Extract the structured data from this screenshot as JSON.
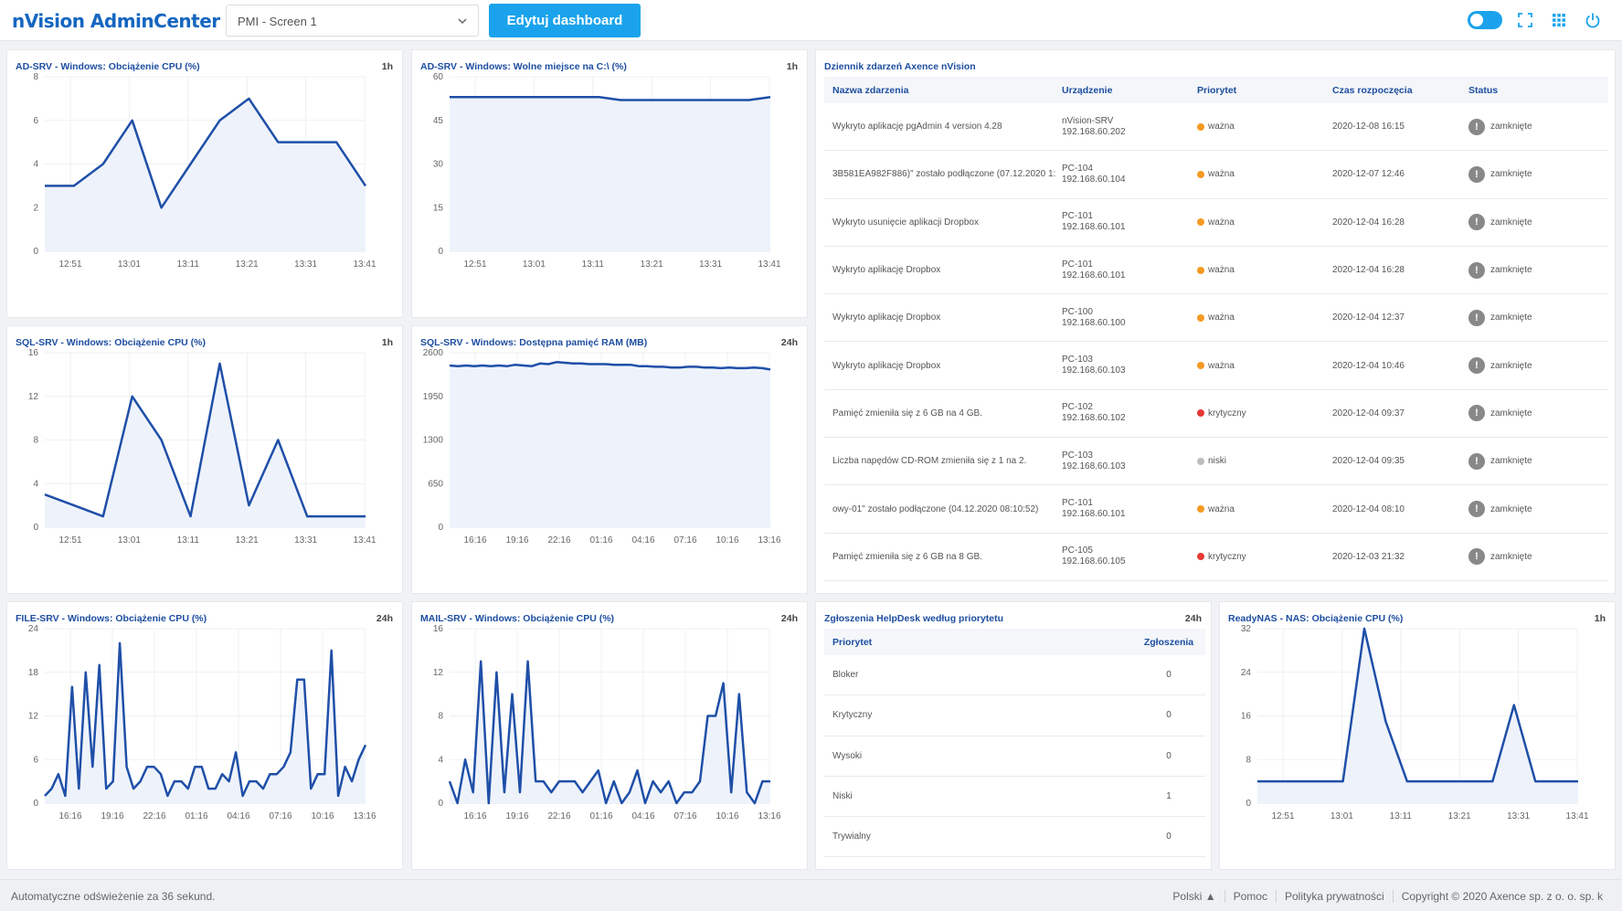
{
  "header": {
    "logo": "nVision AdminCenter",
    "screen_select": "PMI - Screen 1",
    "edit_button": "Edytuj dashboard",
    "icons": [
      "theme-toggle-icon",
      "fullscreen-icon",
      "apps-grid-icon",
      "power-icon"
    ]
  },
  "colors": {
    "accent": "#1aa3ec",
    "line": "#1f4fa8",
    "title": "#1d4ea0",
    "warning": "#f59a23",
    "critical": "#e53935",
    "low": "#bdbdbd"
  },
  "panels": {
    "p1": {
      "title": "AD-SRV - Windows: Obciążenie CPU (%)",
      "badge": "1h"
    },
    "p2": {
      "title": "AD-SRV - Windows: Wolne miejsce na C:\\ (%)",
      "badge": "1h"
    },
    "p3": {
      "title": "SQL-SRV - Windows: Obciążenie CPU (%)",
      "badge": "1h"
    },
    "p4": {
      "title": "SQL-SRV - Windows: Dostępna pamięć RAM (MB)",
      "badge": "24h"
    },
    "p5": {
      "title": "FILE-SRV - Windows: Obciążenie CPU (%)",
      "badge": "24h"
    },
    "p6": {
      "title": "MAIL-SRV - Windows: Obciążenie CPU (%)",
      "badge": "24h"
    },
    "events": {
      "title": "Dziennik zdarzeń Axence nVision"
    },
    "helpdesk": {
      "title": "Zgłoszenia HelpDesk według priorytetu",
      "badge": "24h"
    },
    "p8": {
      "title": "ReadyNAS - NAS: Obciążenie CPU (%)",
      "badge": "1h"
    }
  },
  "chart_data": [
    {
      "id": "p1",
      "type": "area",
      "x_ticks": [
        "12:51",
        "13:01",
        "13:11",
        "13:21",
        "13:31",
        "13:41"
      ],
      "y_ticks": [
        0,
        2,
        4,
        6,
        8
      ],
      "ylim": [
        0,
        8
      ],
      "values": [
        3,
        3,
        4,
        6,
        2,
        4,
        6,
        7,
        5,
        5,
        5,
        3
      ]
    },
    {
      "id": "p2",
      "type": "area",
      "x_ticks": [
        "12:51",
        "13:01",
        "13:11",
        "13:21",
        "13:31",
        "13:41"
      ],
      "y_ticks": [
        0,
        15,
        30,
        45,
        60
      ],
      "ylim": [
        0,
        60
      ],
      "values": [
        53,
        53,
        53,
        53,
        53,
        53,
        53,
        53,
        52,
        52,
        52,
        52,
        52,
        52,
        52,
        53
      ]
    },
    {
      "id": "p3",
      "type": "area",
      "x_ticks": [
        "12:51",
        "13:01",
        "13:11",
        "13:21",
        "13:31",
        "13:41"
      ],
      "y_ticks": [
        0,
        4,
        8,
        12,
        16
      ],
      "ylim": [
        0,
        16
      ],
      "values": [
        3,
        2,
        1,
        12,
        8,
        1,
        15,
        2,
        8,
        1,
        1,
        1
      ]
    },
    {
      "id": "p4",
      "type": "area",
      "x_ticks": [
        "16:16",
        "19:16",
        "22:16",
        "01:16",
        "04:16",
        "07:16",
        "10:16",
        "13:16"
      ],
      "y_ticks": [
        0,
        650,
        1300,
        1950,
        2600
      ],
      "ylim": [
        0,
        2600
      ],
      "values": [
        2410,
        2400,
        2410,
        2400,
        2410,
        2400,
        2410,
        2400,
        2420,
        2410,
        2400,
        2440,
        2430,
        2460,
        2450,
        2440,
        2440,
        2430,
        2430,
        2430,
        2420,
        2420,
        2420,
        2400,
        2400,
        2390,
        2390,
        2380,
        2380,
        2390,
        2390,
        2380,
        2380,
        2370,
        2380,
        2370,
        2370,
        2380,
        2370,
        2350
      ]
    },
    {
      "id": "p5",
      "type": "area",
      "x_ticks": [
        "16:16",
        "19:16",
        "22:16",
        "01:16",
        "04:16",
        "07:16",
        "10:16",
        "13:16"
      ],
      "y_ticks": [
        0,
        6,
        12,
        18,
        24
      ],
      "ylim": [
        0,
        24
      ],
      "values": [
        1,
        2,
        4,
        1,
        16,
        2,
        18,
        5,
        19,
        2,
        3,
        22,
        5,
        2,
        3,
        5,
        5,
        4,
        1,
        3,
        3,
        2,
        5,
        5,
        2,
        2,
        4,
        3,
        7,
        1,
        3,
        3,
        2,
        4,
        4,
        5,
        7,
        17,
        17,
        2,
        4,
        4,
        21,
        1,
        5,
        3,
        6,
        8
      ]
    },
    {
      "id": "p6",
      "type": "area",
      "x_ticks": [
        "16:16",
        "19:16",
        "22:16",
        "01:16",
        "04:16",
        "07:16",
        "10:16",
        "13:16"
      ],
      "y_ticks": [
        0,
        4,
        8,
        12,
        16
      ],
      "ylim": [
        0,
        16
      ],
      "values": [
        2,
        0,
        4,
        1,
        13,
        0,
        12,
        1,
        10,
        1,
        13,
        2,
        2,
        1,
        2,
        2,
        2,
        1,
        2,
        3,
        0,
        2,
        0,
        1,
        3,
        0,
        2,
        1,
        2,
        0,
        1,
        1,
        2,
        8,
        8,
        11,
        1,
        10,
        1,
        0,
        2,
        2
      ]
    },
    {
      "id": "p8",
      "type": "area",
      "x_ticks": [
        "12:51",
        "13:01",
        "13:11",
        "13:21",
        "13:31",
        "13:41"
      ],
      "y_ticks": [
        0,
        8,
        16,
        24,
        32
      ],
      "ylim": [
        0,
        32
      ],
      "values": [
        4,
        4,
        4,
        4,
        4,
        32,
        15,
        4,
        4,
        4,
        4,
        4,
        18,
        4,
        4,
        4
      ]
    }
  ],
  "events": {
    "headers": [
      "Nazwa zdarzenia",
      "Urządzenie",
      "Priorytet",
      "Czas rozpoczęcia",
      "Status"
    ],
    "rows": [
      {
        "name": "Wykryto aplikację pgAdmin 4 version 4.28",
        "dev": "nVision-SRV",
        "ip": "192.168.60.202",
        "prio": "ważna",
        "prio_color": "#f59a23",
        "time": "2020-12-08 16:15",
        "status": "zamknięte"
      },
      {
        "name": "3B581EA982F886)\" zostało podłączone (07.12.2020 1:",
        "dev": "PC-104",
        "ip": "192.168.60.104",
        "prio": "ważna",
        "prio_color": "#f59a23",
        "time": "2020-12-07 12:46",
        "status": "zamknięte"
      },
      {
        "name": "Wykryto usunięcie aplikacji Dropbox",
        "dev": "PC-101",
        "ip": "192.168.60.101",
        "prio": "ważna",
        "prio_color": "#f59a23",
        "time": "2020-12-04 16:28",
        "status": "zamknięte"
      },
      {
        "name": "Wykryto aplikację Dropbox",
        "dev": "PC-101",
        "ip": "192.168.60.101",
        "prio": "ważna",
        "prio_color": "#f59a23",
        "time": "2020-12-04 16:28",
        "status": "zamknięte"
      },
      {
        "name": "Wykryto aplikację Dropbox",
        "dev": "PC-100",
        "ip": "192.168.60.100",
        "prio": "ważna",
        "prio_color": "#f59a23",
        "time": "2020-12-04 12:37",
        "status": "zamknięte"
      },
      {
        "name": "Wykryto aplikację Dropbox",
        "dev": "PC-103",
        "ip": "192.168.60.103",
        "prio": "ważna",
        "prio_color": "#f59a23",
        "time": "2020-12-04 10:46",
        "status": "zamknięte"
      },
      {
        "name": "Pamięć zmieniła się z 6 GB na 4 GB.",
        "dev": "PC-102",
        "ip": "192.168.60.102",
        "prio": "krytyczny",
        "prio_color": "#e53935",
        "time": "2020-12-04 09:37",
        "status": "zamknięte"
      },
      {
        "name": "Liczba napędów CD-ROM zmieniła się z 1 na 2.",
        "dev": "PC-103",
        "ip": "192.168.60.103",
        "prio": "niski",
        "prio_color": "#bdbdbd",
        "time": "2020-12-04 09:35",
        "status": "zamknięte"
      },
      {
        "name": "owy-01\" zostało podłączone (04.12.2020 08:10:52)",
        "dev": "PC-101",
        "ip": "192.168.60.101",
        "prio": "ważna",
        "prio_color": "#f59a23",
        "time": "2020-12-04 08:10",
        "status": "zamknięte"
      },
      {
        "name": "Pamięć zmieniła się z 6 GB na 8 GB.",
        "dev": "PC-105",
        "ip": "192.168.60.105",
        "prio": "krytyczny",
        "prio_color": "#e53935",
        "time": "2020-12-03 21:32",
        "status": "zamknięte"
      }
    ]
  },
  "helpdesk": {
    "headers": [
      "Priorytet",
      "Zgłoszenia"
    ],
    "rows": [
      {
        "label": "Bloker",
        "count": "0"
      },
      {
        "label": "Krytyczny",
        "count": "0"
      },
      {
        "label": "Wysoki",
        "count": "0"
      },
      {
        "label": "Niski",
        "count": "1"
      },
      {
        "label": "Trywialny",
        "count": "0"
      }
    ]
  },
  "footer": {
    "refresh": "Automatyczne odświeżenie za 36 sekund.",
    "language": "Polski ▲",
    "help": "Pomoc",
    "privacy": "Polityka prywatności",
    "copyright": "Copyright © 2020  Axence sp. z o. o. sp. k"
  }
}
